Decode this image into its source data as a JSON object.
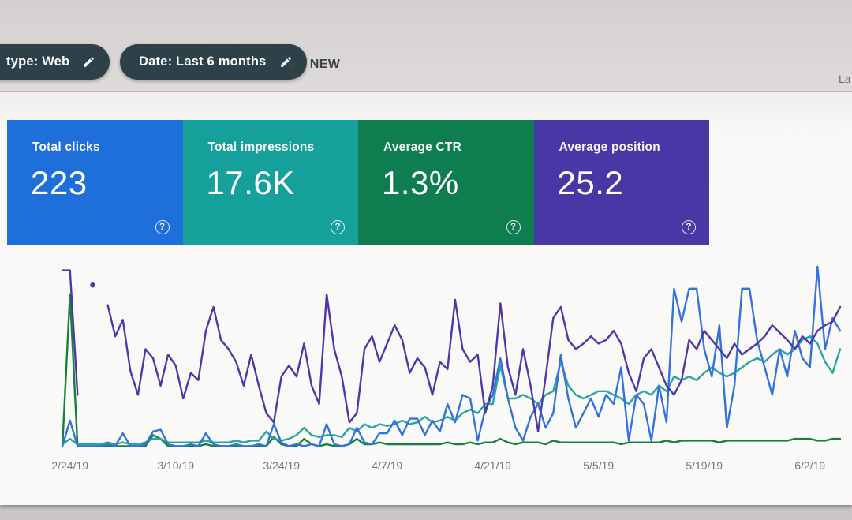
{
  "toolbar": {
    "chips": [
      {
        "label": "type: Web",
        "icon": "pencil-edit"
      },
      {
        "label": "Date: Last 6 months",
        "icon": "pencil-edit"
      }
    ],
    "new_button": {
      "plus": "+",
      "label": "NEW"
    },
    "right_partial_text": "La"
  },
  "summary_cards": [
    {
      "metric": "Total clicks",
      "value": "223",
      "color": "#1f6fdb",
      "help_icon": "?"
    },
    {
      "metric": "Total impressions",
      "value": "17.6K",
      "color": "#16a09b",
      "help_icon": "?"
    },
    {
      "metric": "Average CTR",
      "value": "1.3%",
      "color": "#0e7d4f",
      "help_icon": "?"
    },
    {
      "metric": "Average position",
      "value": "25.2",
      "color": "#4a37a6",
      "help_icon": "?"
    }
  ],
  "chart_data": {
    "type": "line",
    "title": "",
    "xlabel": "",
    "ylabel": "",
    "grid": false,
    "legend_position": "none (series colors correspond to the summary cards)",
    "note": "Search Console overlays four independently-scaled daily series; no y-axis labels are visible, so values are estimated as percent of plot height (0 = baseline, 100 = top).",
    "x_tick_labels": [
      "2/24/19",
      "3/10/19",
      "3/24/19",
      "4/7/19",
      "4/21/19",
      "5/5/19",
      "5/19/19",
      "6/2/19"
    ],
    "ticks": [
      {
        "label": "2/24/19",
        "i": 3
      },
      {
        "label": "3/10/19",
        "i": 17
      },
      {
        "label": "3/24/19",
        "i": 31
      },
      {
        "label": "4/7/19",
        "i": 45
      },
      {
        "label": "4/21/19",
        "i": 59
      },
      {
        "label": "5/5/19",
        "i": 73
      },
      {
        "label": "5/19/19",
        "i": 87
      },
      {
        "label": "6/2/19",
        "i": 101
      }
    ],
    "n_points": 106,
    "series": [
      {
        "name": "CTR",
        "color": "#17803e",
        "values": [
          null,
          null,
          2,
          85,
          2,
          2,
          2,
          2,
          2,
          2,
          2,
          2,
          2,
          2,
          8,
          6,
          2,
          2,
          2,
          2,
          2,
          3,
          2,
          2,
          2,
          2,
          2,
          2,
          2,
          2,
          7,
          3,
          2,
          2,
          6,
          3,
          2,
          3,
          2,
          2,
          3,
          6,
          3,
          3,
          4,
          3,
          3,
          3,
          3,
          3,
          3,
          3,
          3,
          4,
          3,
          3,
          4,
          3,
          4,
          4,
          6,
          4,
          3,
          4,
          4,
          4,
          3,
          5,
          4,
          4,
          4,
          4,
          4,
          4,
          4,
          4,
          3,
          4,
          4,
          4,
          4,
          4,
          5,
          4,
          5,
          5,
          5,
          5,
          5,
          4,
          5,
          5,
          5,
          5,
          5,
          5,
          5,
          5,
          5,
          6,
          6,
          6,
          5,
          5,
          6,
          6
        ]
      },
      {
        "name": "Impressions",
        "color": "#2aa5a0",
        "values": [
          null,
          null,
          3,
          6,
          3,
          3,
          3,
          3,
          4,
          3,
          4,
          3,
          3,
          4,
          6,
          6,
          4,
          4,
          4,
          4,
          4,
          5,
          4,
          4,
          4,
          5,
          4,
          5,
          5,
          10,
          6,
          5,
          6,
          8,
          12,
          8,
          7,
          8,
          8,
          7,
          12,
          10,
          14,
          12,
          14,
          13,
          14,
          16,
          14,
          15,
          18,
          15,
          16,
          18,
          16,
          20,
          22,
          20,
          25,
          25,
          46,
          28,
          28,
          30,
          28,
          25,
          30,
          32,
          48,
          35,
          30,
          28,
          30,
          32,
          32,
          30,
          28,
          25,
          30,
          32,
          30,
          35,
          32,
          40,
          38,
          40,
          38,
          42,
          45,
          42,
          40,
          42,
          45,
          48,
          50,
          48,
          52,
          55,
          52,
          55,
          60,
          62,
          58,
          48,
          42,
          55
        ]
      },
      {
        "name": "Clicks",
        "color": "#3273dc",
        "values": [
          null,
          null,
          2,
          16,
          2,
          2,
          2,
          2,
          3,
          2,
          9,
          2,
          2,
          3,
          10,
          11,
          3,
          2,
          2,
          3,
          2,
          9,
          3,
          2,
          2,
          3,
          2,
          2,
          3,
          2,
          14,
          4,
          2,
          3,
          2,
          3,
          2,
          14,
          3,
          2,
          3,
          12,
          4,
          3,
          9,
          9,
          16,
          8,
          17,
          17,
          8,
          16,
          10,
          25,
          15,
          30,
          28,
          5,
          22,
          30,
          50,
          28,
          12,
          5,
          18,
          25,
          12,
          20,
          52,
          28,
          12,
          20,
          28,
          18,
          30,
          25,
          45,
          5,
          30,
          25,
          5,
          35,
          15,
          88,
          70,
          88,
          88,
          55,
          40,
          68,
          12,
          35,
          88,
          88,
          60,
          45,
          30,
          55,
          40,
          65,
          50,
          45,
          100,
          55,
          72,
          65
        ]
      },
      {
        "name": "Position",
        "color": "#4e37ab",
        "values": [
          null,
          null,
          98,
          98,
          30,
          null,
          90,
          null,
          79,
          62,
          71,
          43,
          30,
          55,
          50,
          35,
          52,
          46,
          28,
          42,
          38,
          65,
          78,
          60,
          55,
          48,
          35,
          52,
          35,
          20,
          15,
          40,
          46,
          40,
          58,
          35,
          25,
          85,
          55,
          40,
          15,
          20,
          55,
          62,
          48,
          58,
          68,
          60,
          42,
          50,
          45,
          30,
          48,
          44,
          82,
          55,
          48,
          52,
          20,
          35,
          80,
          45,
          30,
          55,
          35,
          10,
          40,
          72,
          78,
          60,
          55,
          58,
          62,
          58,
          60,
          65,
          58,
          42,
          32,
          50,
          55,
          45,
          35,
          30,
          38,
          60,
          55,
          65,
          60,
          55,
          50,
          58,
          52,
          55,
          58,
          62,
          68,
          64,
          60,
          55,
          62,
          58,
          65,
          68,
          70,
          78
        ]
      }
    ]
  }
}
